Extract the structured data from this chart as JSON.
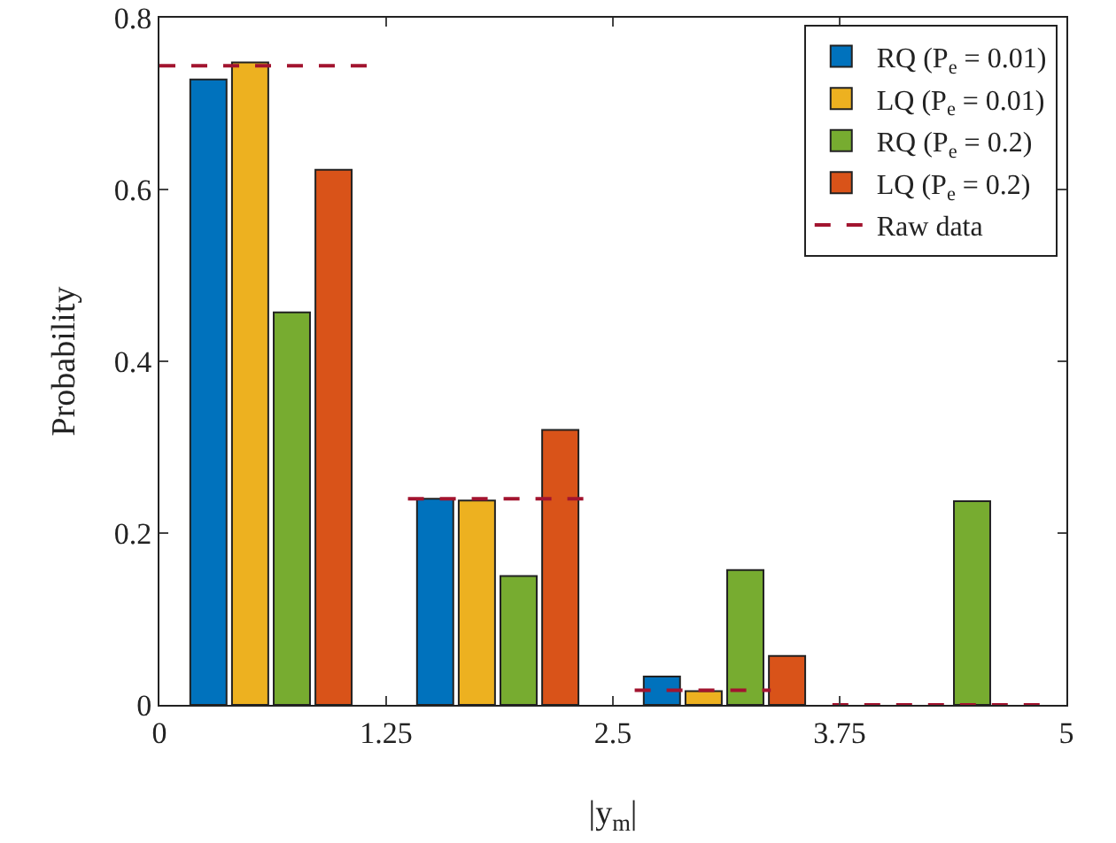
{
  "chart_data": {
    "type": "bar",
    "xlabel": "|y$_{m}$|",
    "ylabel": "Probability",
    "xlim": [
      0,
      5
    ],
    "xticks": [
      0,
      1.25,
      2.5,
      3.75,
      5
    ],
    "ylim": [
      0,
      0.8
    ],
    "yticks": [
      0,
      0.2,
      0.4,
      0.6,
      0.8
    ],
    "grid": false,
    "legend": "top right",
    "series": [
      {
        "name": "RQ (P$_{e}$ = 0.01)",
        "color": "#0072bd",
        "x": [
          0.27,
          1.52,
          2.77
        ],
        "values": [
          0.728,
          0.24,
          0.033
        ]
      },
      {
        "name": "LQ (P$_{e}$ = 0.01)",
        "color": "#edb120",
        "x": [
          0.5,
          1.75,
          3.0
        ],
        "values": [
          0.748,
          0.238,
          0.016
        ]
      },
      {
        "name": "RQ (P$_{e}$ = 0.2)",
        "color": "#77ac30",
        "x": [
          0.73,
          1.98,
          3.23,
          4.48
        ],
        "values": [
          0.457,
          0.15,
          0.157,
          0.237
        ]
      },
      {
        "name": "LQ (P$_{e}$ = 0.2)",
        "color": "#d95319",
        "x": [
          0.96,
          2.21,
          3.46
        ],
        "values": [
          0.623,
          0.32,
          0.057
        ]
      },
      {
        "name": "Raw data",
        "type": "line",
        "line_style": "dashed",
        "color": "#a2142f",
        "x": [
          0,
          1.22,
          null,
          1.37,
          2.37,
          null,
          2.62,
          3.37,
          null,
          3.71,
          4.88
        ],
        "values": [
          0.744,
          0.744,
          null,
          0.24,
          0.24,
          null,
          0.017,
          0.017,
          null,
          0,
          0
        ]
      }
    ]
  }
}
